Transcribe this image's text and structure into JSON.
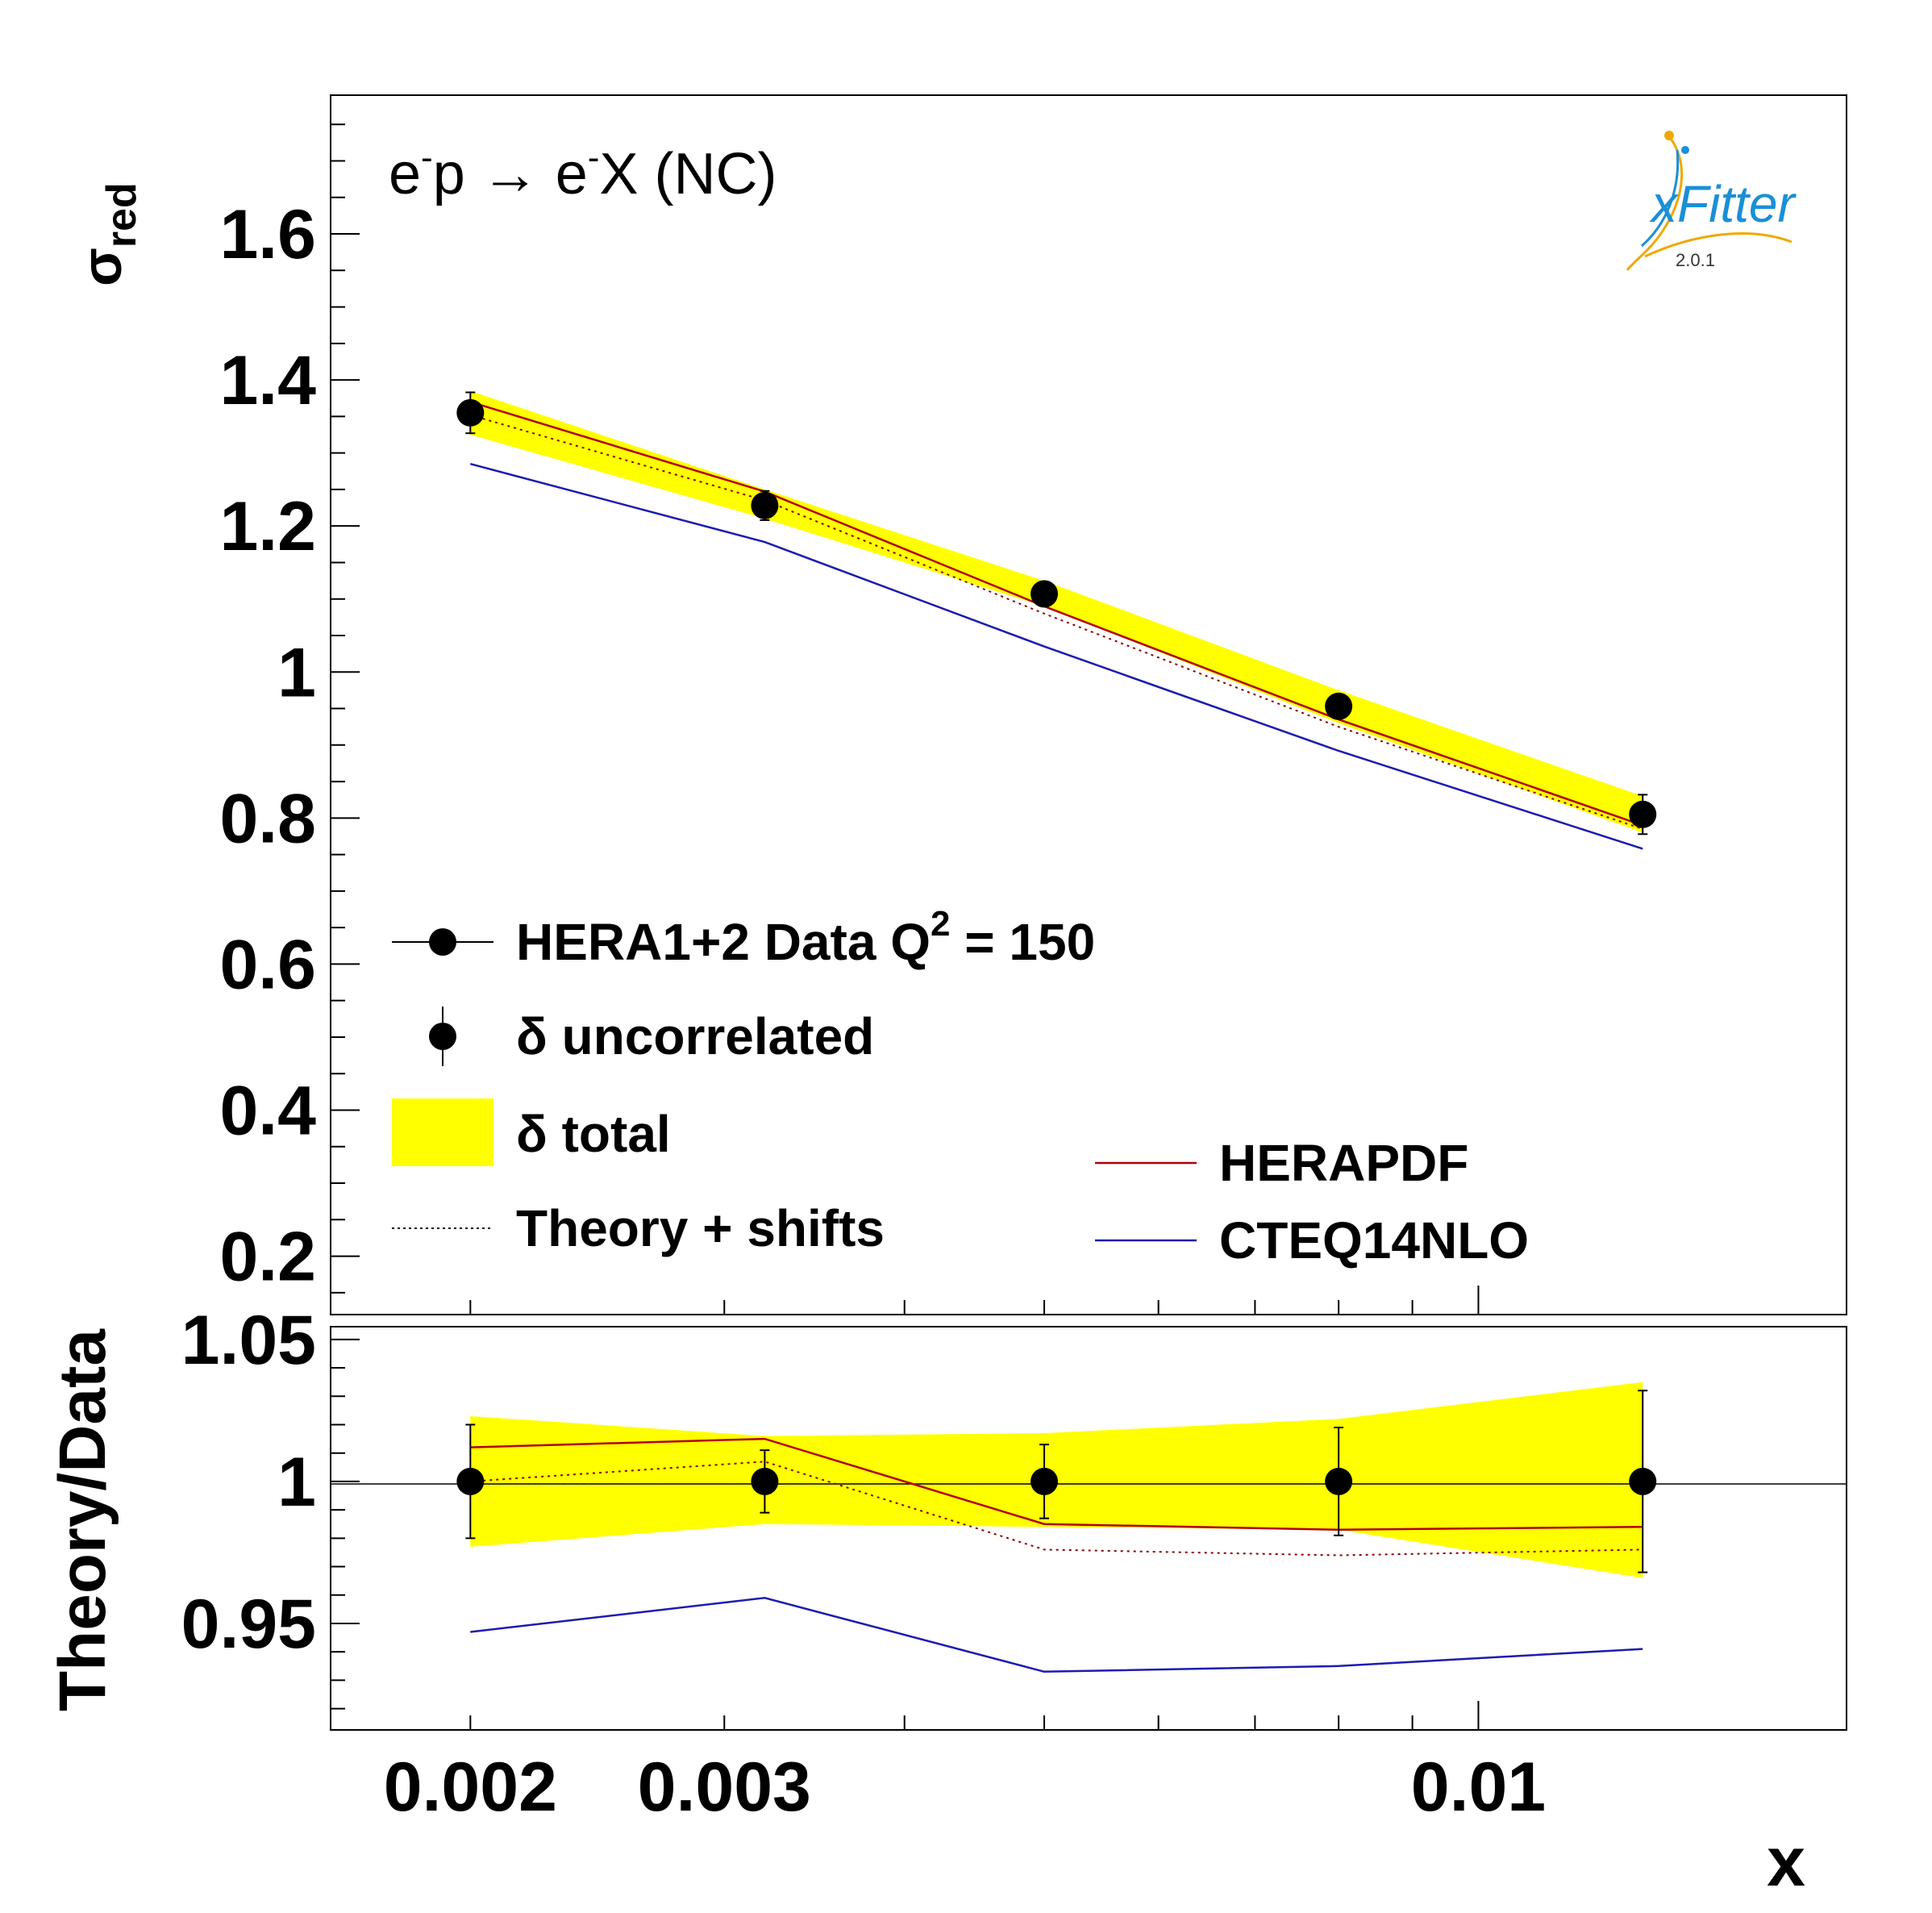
{
  "process_label": {
    "prefix": "e",
    "sup1": "-",
    "middle": "p → e",
    "sup2": "-",
    "suffix": "X (NC)"
  },
  "logo": {
    "text": "xFitter",
    "version": "2.0.1",
    "colors": {
      "blue": "#1a8fd6",
      "orange": "#f0a800"
    }
  },
  "colors": {
    "band": "#ffff00",
    "herapdf": "#b0000a",
    "cteq": "#1c1cb0",
    "theory_shift": "#8b0000",
    "data": "#000000"
  },
  "legend": {
    "data_pre": "HERA1+2 Data Q",
    "data_sup": "2",
    "data_post": " = 150",
    "uncorrelated": "δ uncorrelated",
    "total": "δ total",
    "theory_shifts": "Theory + shifts",
    "herapdf": "HERAPDF",
    "cteq": "CTEQ14NLO"
  },
  "chart_data": [
    {
      "type": "line",
      "panel": "main",
      "ylabel_main": "σ",
      "ylabel_sub": "red",
      "xscale": "log",
      "xlim": [
        0.0016,
        0.018
      ],
      "ylim": [
        0.12,
        1.79
      ],
      "yticks": [
        0.2,
        0.4,
        0.6,
        0.8,
        1.0
      ],
      "ytick_labels": [
        "0.2",
        "0.4",
        "0.6",
        "0.8",
        "1"
      ],
      "yticks_more": [
        1.2,
        1.4,
        1.6
      ],
      "ytick_labels_more": [
        "1.2",
        "1.4",
        "1.6"
      ],
      "x": [
        0.002,
        0.0032,
        0.005,
        0.008,
        0.013
      ],
      "data": {
        "y": [
          1.355,
          1.228,
          1.107,
          0.953,
          0.805
        ],
        "err_unc": [
          0.028,
          0.02,
          0.015,
          0.013,
          0.027
        ]
      },
      "band_total": {
        "lo": [
          1.325,
          1.21,
          1.09,
          0.93,
          0.78
        ],
        "hi": [
          1.385,
          1.25,
          1.125,
          0.975,
          0.83
        ]
      },
      "series": [
        {
          "name": "HERAPDF",
          "values": [
            1.37,
            1.247,
            1.09,
            0.935,
            0.79
          ]
        },
        {
          "name": "Theory + shifts",
          "values": [
            1.352,
            1.235,
            1.08,
            0.925,
            0.785
          ]
        },
        {
          "name": "CTEQ14NLO",
          "values": [
            1.285,
            1.178,
            1.035,
            0.892,
            0.758
          ]
        }
      ]
    },
    {
      "type": "line",
      "panel": "ratio",
      "xlabel": "x",
      "ylabel": "Theory/Data",
      "xscale": "log",
      "xlim": [
        0.0016,
        0.018
      ],
      "ylim": [
        0.9125,
        1.0545
      ],
      "yticks": [
        0.95,
        1.0,
        1.05
      ],
      "ytick_labels": [
        "0.95",
        "1",
        "1.05"
      ],
      "xticks": [
        0.002,
        0.003,
        0.01
      ],
      "xtick_labels": [
        "0.002",
        "0.003",
        "0.01"
      ],
      "x": [
        0.002,
        0.0032,
        0.005,
        0.008,
        0.013
      ],
      "data": {
        "y": [
          1.0,
          1.0,
          1.0,
          1.0,
          1.0
        ],
        "err_unc": [
          0.02,
          0.011,
          0.013,
          0.019,
          0.032
        ]
      },
      "band_total": {
        "lo": [
          0.977,
          0.985,
          0.984,
          0.983,
          0.966
        ],
        "hi": [
          1.023,
          1.016,
          1.017,
          1.022,
          1.035
        ]
      },
      "series": [
        {
          "name": "HERAPDF",
          "values": [
            1.012,
            1.015,
            0.985,
            0.983,
            0.984
          ]
        },
        {
          "name": "Theory + shifts",
          "values": [
            1.0,
            1.007,
            0.976,
            0.974,
            0.976
          ]
        },
        {
          "name": "CTEQ14NLO",
          "values": [
            0.947,
            0.959,
            0.933,
            0.935,
            0.941
          ]
        }
      ]
    }
  ]
}
